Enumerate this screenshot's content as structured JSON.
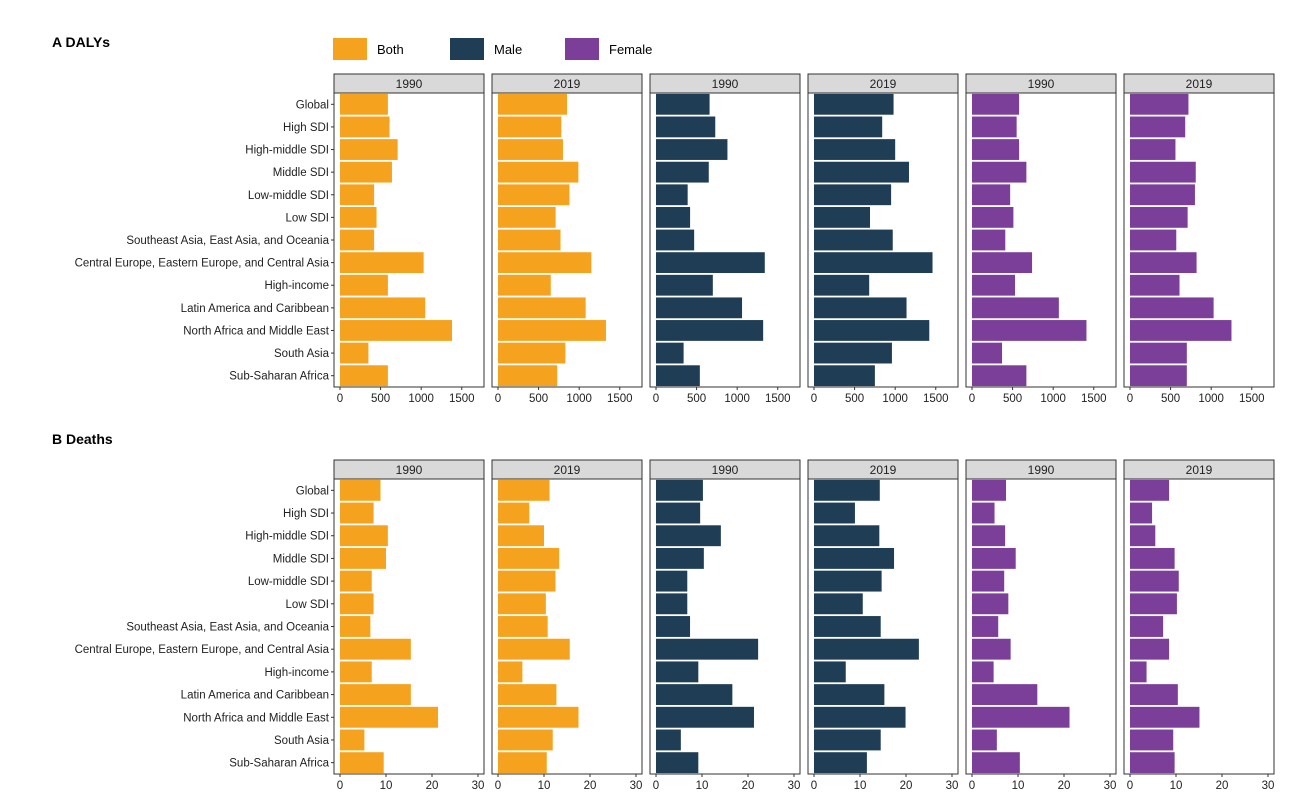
{
  "legend": {
    "items": [
      {
        "label": "Both",
        "color": "#F5A21E"
      },
      {
        "label": "Male",
        "color": "#1F3D55"
      },
      {
        "label": "Female",
        "color": "#7B3F99"
      }
    ]
  },
  "chart_data": [
    {
      "type": "bar",
      "orientation": "horizontal",
      "title": "A DALYs",
      "categories": [
        "Global",
        "High SDI",
        "High-middle SDI",
        "Middle SDI",
        "Low-middle SDI",
        "Low SDI",
        "Southeast Asia, East Asia, and Oceania",
        "Central Europe, Eastern Europe, and Central Asia",
        "High-income",
        "Latin America and Caribbean",
        "North Africa and Middle East",
        "South Asia",
        "Sub-Saharan Africa"
      ],
      "xlim": [
        0,
        1700
      ],
      "xticks": [
        0,
        500,
        1000,
        1500
      ],
      "tick_labels": [
        "0",
        "500",
        "1000",
        "1500"
      ],
      "panels": [
        {
          "facet": "1990",
          "series": "Both",
          "values": [
            590,
            610,
            710,
            640,
            420,
            450,
            420,
            1030,
            590,
            1050,
            1380,
            350,
            590
          ]
        },
        {
          "facet": "2019",
          "series": "Both",
          "values": [
            850,
            780,
            800,
            990,
            880,
            710,
            770,
            1150,
            650,
            1080,
            1330,
            830,
            730
          ]
        },
        {
          "facet": "1990",
          "series": "Male",
          "values": [
            660,
            730,
            880,
            650,
            390,
            420,
            470,
            1340,
            700,
            1060,
            1320,
            340,
            540
          ]
        },
        {
          "facet": "2019",
          "series": "Male",
          "values": [
            980,
            840,
            1000,
            1170,
            950,
            690,
            970,
            1460,
            680,
            1140,
            1420,
            960,
            750
          ]
        },
        {
          "facet": "1990",
          "series": "Female",
          "values": [
            580,
            550,
            580,
            670,
            470,
            510,
            410,
            740,
            530,
            1070,
            1410,
            370,
            670
          ]
        },
        {
          "facet": "2019",
          "series": "Female",
          "values": [
            720,
            680,
            560,
            810,
            800,
            710,
            570,
            820,
            610,
            1030,
            1250,
            700,
            700
          ]
        }
      ]
    },
    {
      "type": "bar",
      "orientation": "horizontal",
      "title": "B Deaths",
      "categories": [
        "Global",
        "High SDI",
        "High-middle SDI",
        "Middle SDI",
        "Low-middle SDI",
        "Low SDI",
        "Southeast Asia, East Asia, and Oceania",
        "Central Europe, Eastern Europe, and Central Asia",
        "High-income",
        "Latin America and Caribbean",
        "North Africa and Middle East",
        "South Asia",
        "Sub-Saharan Africa"
      ],
      "xlim": [
        0,
        30
      ],
      "xticks": [
        0,
        10,
        20,
        30
      ],
      "tick_labels": [
        "0",
        "10",
        "20",
        "30"
      ],
      "panels": [
        {
          "facet": "1990",
          "series": "Both",
          "values": [
            8.8,
            7.3,
            10.4,
            10.0,
            6.9,
            7.3,
            6.6,
            15.4,
            6.9,
            15.4,
            21.3,
            5.3,
            9.5
          ]
        },
        {
          "facet": "2019",
          "series": "Both",
          "values": [
            11.2,
            6.8,
            10.0,
            13.3,
            12.5,
            10.4,
            10.8,
            15.6,
            5.3,
            12.7,
            17.5,
            11.9,
            10.6
          ]
        },
        {
          "facet": "1990",
          "series": "Male",
          "values": [
            10.2,
            9.6,
            14.1,
            10.4,
            6.8,
            6.8,
            7.4,
            22.2,
            9.2,
            16.6,
            21.3,
            5.4,
            9.2
          ]
        },
        {
          "facet": "2019",
          "series": "Male",
          "values": [
            14.3,
            8.9,
            14.2,
            17.4,
            14.7,
            10.6,
            14.5,
            22.8,
            6.9,
            15.3,
            19.9,
            14.5,
            11.5
          ]
        },
        {
          "facet": "1990",
          "series": "Female",
          "values": [
            7.4,
            4.9,
            7.2,
            9.5,
            7.0,
            7.9,
            5.7,
            8.4,
            4.7,
            14.2,
            21.2,
            5.4,
            10.4
          ]
        },
        {
          "facet": "2019",
          "series": "Female",
          "values": [
            8.5,
            4.8,
            5.5,
            9.7,
            10.6,
            10.2,
            7.2,
            8.5,
            3.6,
            10.4,
            15.1,
            9.4,
            9.7
          ]
        }
      ]
    }
  ]
}
